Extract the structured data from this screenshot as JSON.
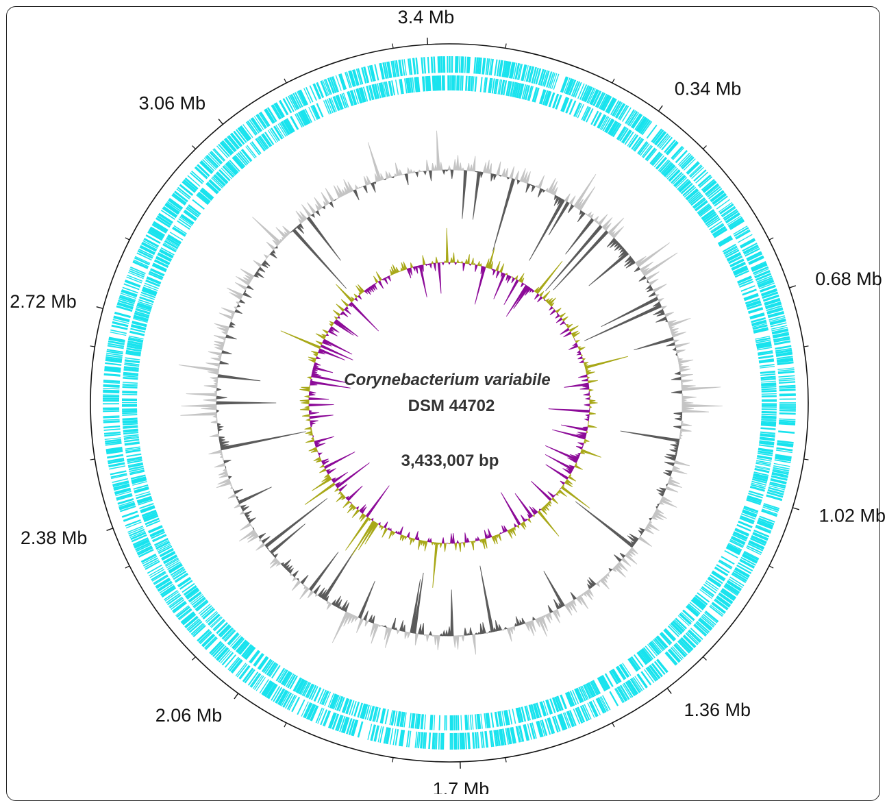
{
  "organism": {
    "name": "Corynebacterium variabile",
    "strain": "DSM 44702",
    "length_label": "3,433,007 bp"
  },
  "scale": {
    "ticks": [
      {
        "label": "3.4 Mb",
        "mb": 3.4
      },
      {
        "label": "0.34 Mb",
        "mb": 0.34
      },
      {
        "label": "0.68 Mb",
        "mb": 0.68
      },
      {
        "label": "1.02 Mb",
        "mb": 1.02
      },
      {
        "label": "1.36 Mb",
        "mb": 1.36
      },
      {
        "label": "1.7 Mb",
        "mb": 1.7
      },
      {
        "label": "2.06 Mb",
        "mb": 2.06
      },
      {
        "label": "2.38 Mb",
        "mb": 2.38
      },
      {
        "label": "2.72 Mb",
        "mb": 2.72
      },
      {
        "label": "3.06 Mb",
        "mb": 3.06
      }
    ]
  },
  "colors": {
    "cds": "#18e3ee",
    "gc_content_high": "#c4c4c4",
    "gc_content_low": "#5a5a5a",
    "gc_skew_positive": "#a8a818",
    "gc_skew_negative": "#8c0a98",
    "axis": "#111111"
  }
}
